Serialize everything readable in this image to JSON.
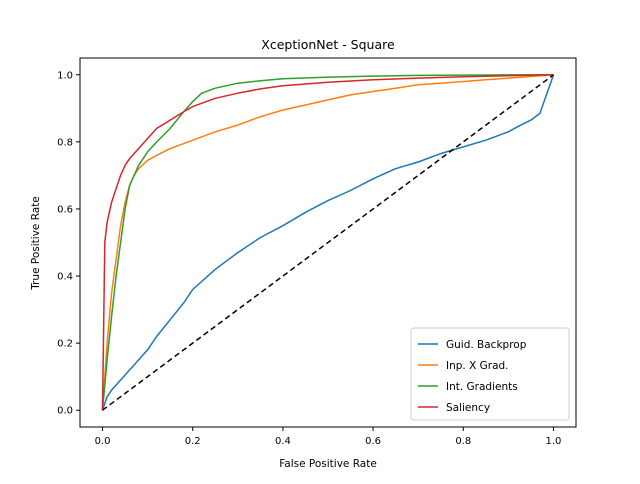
{
  "chart_data": {
    "type": "line",
    "title": "XceptionNet - Square",
    "xlabel": "False Positive Rate",
    "ylabel": "True Positive Rate",
    "xlim": [
      -0.05,
      1.05
    ],
    "ylim": [
      -0.05,
      1.05
    ],
    "xticks": [
      "0.0",
      "0.2",
      "0.4",
      "0.6",
      "0.8",
      "1.0"
    ],
    "yticks": [
      "0.0",
      "0.2",
      "0.4",
      "0.6",
      "0.8",
      "1.0"
    ],
    "grid": false,
    "legend_position": "lower-right",
    "series": [
      {
        "name": "Guid. Backprop",
        "color": "#1f77b4",
        "x": [
          0,
          0.01,
          0.02,
          0.04,
          0.06,
          0.08,
          0.1,
          0.12,
          0.15,
          0.18,
          0.2,
          0.25,
          0.3,
          0.35,
          0.4,
          0.45,
          0.5,
          0.55,
          0.6,
          0.65,
          0.7,
          0.75,
          0.8,
          0.85,
          0.9,
          0.92,
          0.95,
          0.97,
          1.0
        ],
        "y": [
          0,
          0.04,
          0.06,
          0.09,
          0.12,
          0.15,
          0.18,
          0.22,
          0.27,
          0.32,
          0.36,
          0.42,
          0.47,
          0.515,
          0.55,
          0.59,
          0.625,
          0.655,
          0.69,
          0.72,
          0.74,
          0.765,
          0.785,
          0.805,
          0.83,
          0.845,
          0.865,
          0.885,
          1.0
        ]
      },
      {
        "name": "Inp. X Grad.",
        "color": "#ff7f0e",
        "x": [
          0,
          0.01,
          0.02,
          0.03,
          0.04,
          0.05,
          0.06,
          0.07,
          0.08,
          0.1,
          0.12,
          0.15,
          0.2,
          0.25,
          0.3,
          0.35,
          0.4,
          0.45,
          0.5,
          0.55,
          0.6,
          0.65,
          0.7,
          0.75,
          0.8,
          0.85,
          0.9,
          0.95,
          1.0
        ],
        "y": [
          0,
          0.2,
          0.35,
          0.45,
          0.55,
          0.62,
          0.67,
          0.7,
          0.72,
          0.745,
          0.76,
          0.78,
          0.805,
          0.83,
          0.85,
          0.875,
          0.895,
          0.91,
          0.925,
          0.94,
          0.95,
          0.96,
          0.97,
          0.975,
          0.98,
          0.985,
          0.99,
          0.995,
          1.0
        ]
      },
      {
        "name": "Int. Gradients",
        "color": "#2ca02c",
        "x": [
          0,
          0.01,
          0.02,
          0.03,
          0.04,
          0.05,
          0.06,
          0.08,
          0.1,
          0.12,
          0.15,
          0.18,
          0.2,
          0.22,
          0.25,
          0.3,
          0.35,
          0.4,
          0.5,
          0.6,
          0.7,
          0.8,
          0.9,
          1.0
        ],
        "y": [
          0,
          0.15,
          0.28,
          0.4,
          0.5,
          0.6,
          0.67,
          0.73,
          0.77,
          0.8,
          0.84,
          0.89,
          0.92,
          0.945,
          0.96,
          0.975,
          0.982,
          0.988,
          0.993,
          0.996,
          0.998,
          0.999,
          0.9995,
          1.0
        ]
      },
      {
        "name": "Saliency",
        "color": "#d62728",
        "x": [
          0,
          0.005,
          0.01,
          0.02,
          0.03,
          0.04,
          0.05,
          0.06,
          0.08,
          0.1,
          0.12,
          0.15,
          0.18,
          0.2,
          0.25,
          0.3,
          0.35,
          0.4,
          0.5,
          0.6,
          0.7,
          0.8,
          0.9,
          1.0
        ],
        "y": [
          0,
          0.5,
          0.56,
          0.62,
          0.66,
          0.7,
          0.73,
          0.75,
          0.78,
          0.81,
          0.84,
          0.865,
          0.89,
          0.905,
          0.93,
          0.945,
          0.958,
          0.967,
          0.978,
          0.985,
          0.99,
          0.994,
          0.997,
          1.0
        ]
      }
    ],
    "reference_line": {
      "color": "#000000",
      "style": "dashed",
      "x": [
        0,
        1
      ],
      "y": [
        0,
        1
      ]
    }
  }
}
